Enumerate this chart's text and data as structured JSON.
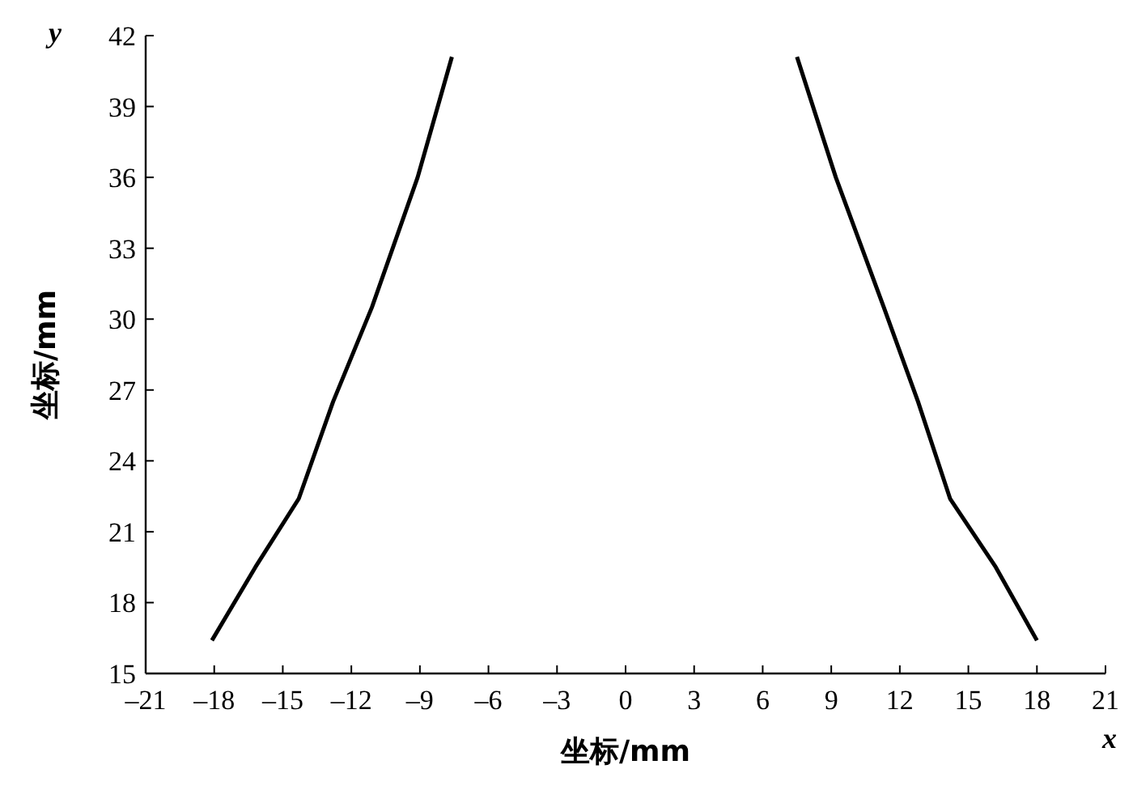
{
  "chart_data": {
    "type": "line",
    "xlabel": "坐标/mm",
    "ylabel": "坐标/mm",
    "annotations": [
      "y",
      "x"
    ],
    "series": [
      {
        "color": "#000000",
        "x": [
          -18.1,
          -16.2,
          -14.3,
          -12.8,
          -11.1,
          -9.1,
          -7.6
        ],
        "values": [
          16.4,
          19.5,
          22.4,
          26.5,
          30.5,
          36,
          41.1
        ]
      },
      {
        "color": "#000000",
        "x": [
          7.5,
          9.2,
          11.3,
          12.8,
          14.2,
          16.2,
          18
        ],
        "values": [
          41.1,
          36,
          30.5,
          26.5,
          22.4,
          19.5,
          16.4
        ]
      }
    ],
    "xlim": [
      -21,
      21
    ],
    "ylim": [
      15,
      42
    ],
    "xticks": [
      {
        "value": -21,
        "label": "–21"
      },
      {
        "value": -18,
        "label": "–18"
      },
      {
        "value": -15,
        "label": "–15"
      },
      {
        "value": -12,
        "label": "–12"
      },
      {
        "value": -9,
        "label": "–9"
      },
      {
        "value": -6,
        "label": "–6"
      },
      {
        "value": -3,
        "label": "–3"
      },
      0,
      3,
      6,
      9,
      12,
      15,
      18,
      21
    ],
    "yticks": [
      15,
      18,
      21,
      24,
      27,
      30,
      33,
      36,
      39,
      42
    ],
    "grid": false,
    "marker": "none",
    "line_style": "solid"
  }
}
